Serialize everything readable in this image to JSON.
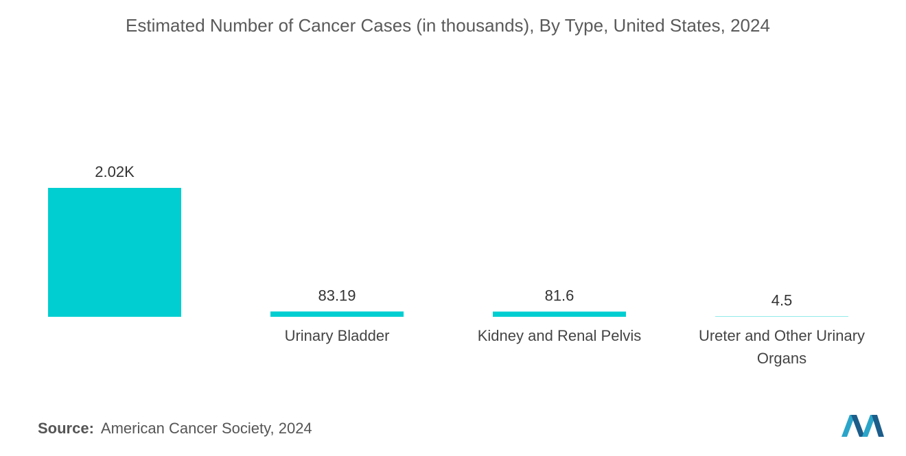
{
  "chart_data": {
    "type": "bar",
    "title": "Estimated Number of Cancer Cases (in thousands), By Type, United States, 2024",
    "categories": [
      null,
      "Urinary Bladder",
      "Kidney and Renal Pelvis",
      "Ureter and Other Urinary Organs"
    ],
    "values": [
      2020,
      83.19,
      81.6,
      4.5
    ],
    "value_labels": [
      "2.02K",
      "83.19",
      "81.6",
      "4.5"
    ],
    "color": "#00ced1"
  },
  "source": {
    "label": "Source:",
    "text": "American Cancer Society, 2024"
  }
}
